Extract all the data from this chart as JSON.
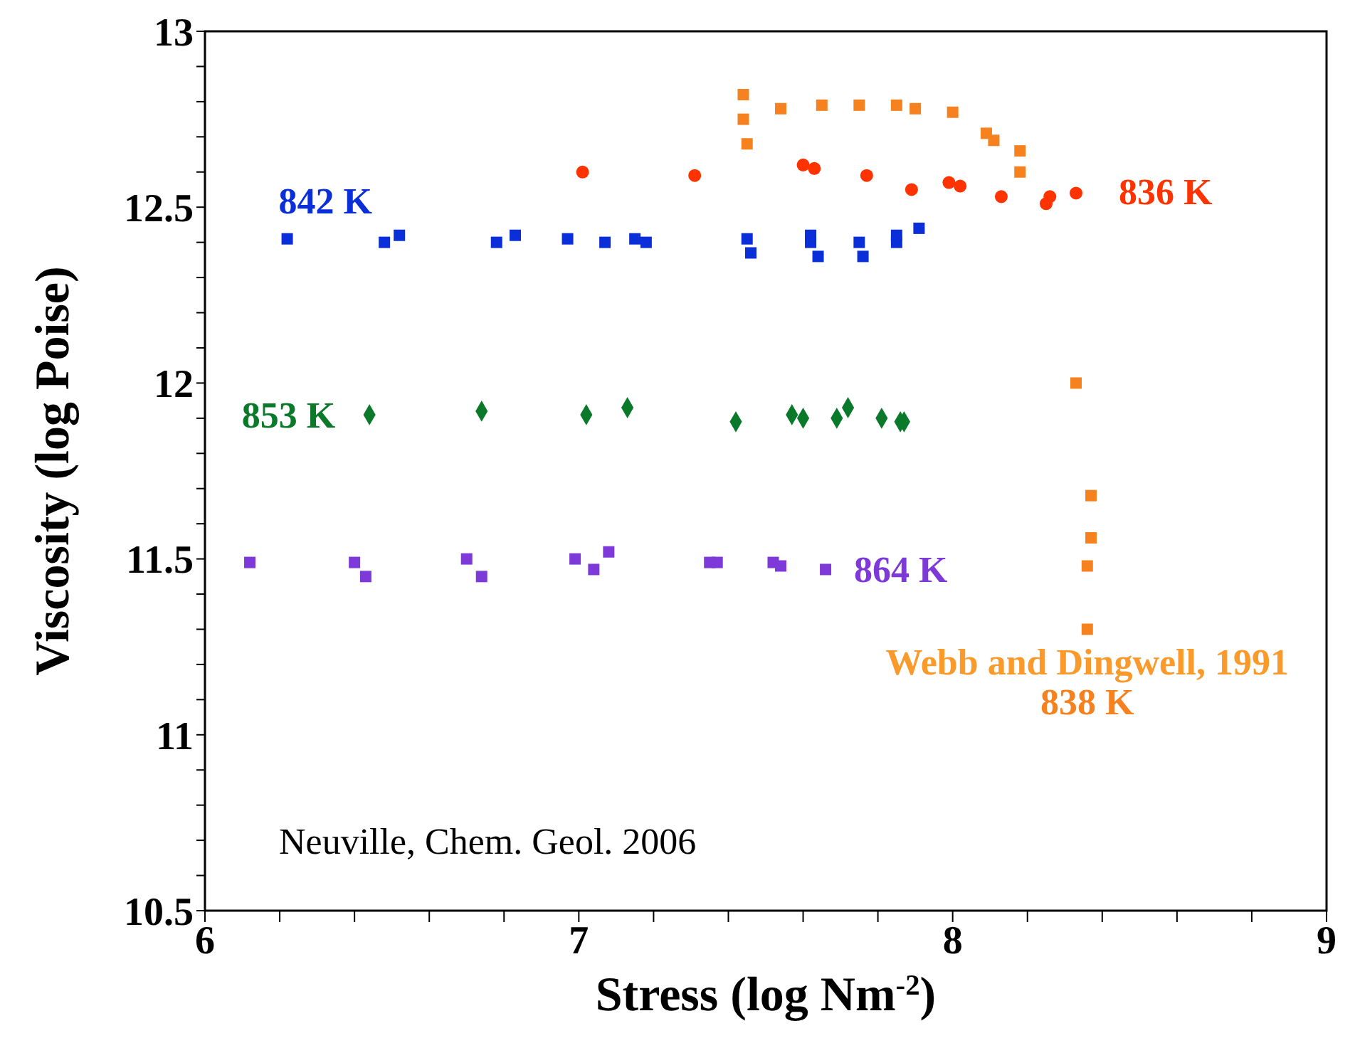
{
  "chart_data": {
    "type": "scatter",
    "xlabel": "Stress (log Nm$^{-2}$)",
    "ylabel": "Viscosity (log Poise)",
    "xlim": [
      6,
      9
    ],
    "ylim": [
      10.5,
      13
    ],
    "xticks": [
      6,
      {
        "value": 6.2,
        "label": null
      },
      {
        "value": 6.4,
        "label": null
      },
      {
        "value": 6.6,
        "label": null
      },
      {
        "value": 6.8,
        "label": null
      },
      7,
      {
        "value": 7.2,
        "label": null
      },
      {
        "value": 7.4,
        "label": null
      },
      {
        "value": 7.6,
        "label": null
      },
      {
        "value": 7.8,
        "label": null
      },
      8,
      {
        "value": 8.2,
        "label": null
      },
      {
        "value": 8.4,
        "label": null
      },
      {
        "value": 8.6,
        "label": null
      },
      {
        "value": 8.8,
        "label": null
      },
      9
    ],
    "yticks": [
      10.5,
      {
        "value": 10.6,
        "label": null
      },
      {
        "value": 10.7,
        "label": null
      },
      {
        "value": 10.8,
        "label": null
      },
      {
        "value": 10.9,
        "label": null
      },
      11,
      {
        "value": 11.1,
        "label": null
      },
      {
        "value": 11.2,
        "label": null
      },
      {
        "value": 11.3,
        "label": null
      },
      {
        "value": 11.4,
        "label": null
      },
      11.5,
      {
        "value": 11.6,
        "label": null
      },
      {
        "value": 11.7,
        "label": null
      },
      {
        "value": 11.8,
        "label": null
      },
      {
        "value": 11.9,
        "label": null
      },
      12,
      {
        "value": 12.1,
        "label": null
      },
      {
        "value": 12.2,
        "label": null
      },
      {
        "value": 12.3,
        "label": null
      },
      {
        "value": 12.4,
        "label": null
      },
      12.5,
      {
        "value": 12.6,
        "label": null
      },
      {
        "value": 12.7,
        "label": null
      },
      {
        "value": 12.8,
        "label": null
      },
      {
        "value": 12.9,
        "label": null
      },
      13
    ],
    "series": [
      {
        "name": "842 K",
        "color": "#0a2ed8",
        "marker": "square",
        "x": [
          6.22,
          6.48,
          6.52,
          6.78,
          6.83,
          6.97,
          7.07,
          7.15,
          7.18,
          7.45,
          7.46,
          7.62,
          7.62,
          7.64,
          7.75,
          7.76,
          7.85,
          7.85,
          7.91
        ],
        "values": [
          12.41,
          12.4,
          12.42,
          12.4,
          12.42,
          12.41,
          12.4,
          12.41,
          12.4,
          12.41,
          12.37,
          12.42,
          12.4,
          12.36,
          12.4,
          12.36,
          12.42,
          12.4,
          12.44
        ]
      },
      {
        "name": "836 K",
        "color": "#ff3300",
        "marker": "circle",
        "x": [
          7.01,
          7.31,
          7.6,
          7.63,
          7.77,
          7.89,
          7.99,
          8.02,
          8.13,
          8.25,
          8.26,
          8.33
        ],
        "values": [
          12.6,
          12.59,
          12.62,
          12.61,
          12.59,
          12.55,
          12.57,
          12.56,
          12.53,
          12.51,
          12.53,
          12.54
        ]
      },
      {
        "name": "853 K",
        "color": "#0a7a2a",
        "marker": "diamond",
        "x": [
          6.44,
          6.74,
          7.02,
          7.13,
          7.42,
          7.57,
          7.6,
          7.69,
          7.72,
          7.81,
          7.86,
          7.87
        ],
        "values": [
          11.91,
          11.92,
          11.91,
          11.93,
          11.89,
          11.91,
          11.9,
          11.9,
          11.93,
          11.9,
          11.89,
          11.89
        ]
      },
      {
        "name": "864 K",
        "color": "#7e3ad8",
        "marker": "square",
        "x": [
          6.12,
          6.4,
          6.43,
          6.7,
          6.74,
          6.99,
          7.04,
          7.08,
          7.35,
          7.37,
          7.52,
          7.54,
          7.66
        ],
        "values": [
          11.49,
          11.49,
          11.45,
          11.5,
          11.45,
          11.5,
          11.47,
          11.52,
          11.49,
          11.49,
          11.49,
          11.48,
          11.47
        ]
      },
      {
        "name": "838 K",
        "color": "#f5821f",
        "marker": "square",
        "x": [
          7.44,
          7.44,
          7.45,
          7.54,
          7.65,
          7.75,
          7.85,
          7.9,
          8.0,
          8.09,
          8.11,
          8.18,
          8.18,
          8.33,
          8.37,
          8.37,
          8.36,
          8.36
        ],
        "values": [
          12.82,
          12.75,
          12.68,
          12.78,
          12.79,
          12.79,
          12.79,
          12.78,
          12.77,
          12.71,
          12.69,
          12.66,
          12.6,
          12.0,
          11.68,
          11.56,
          11.48,
          11.3
        ]
      }
    ],
    "annotations": [
      "Neuville, Chem. Geol. 2006",
      {
        "text": "Webb and Dingwell, 1991",
        "x": 8.36,
        "y": 11.3
      }
    ]
  }
}
